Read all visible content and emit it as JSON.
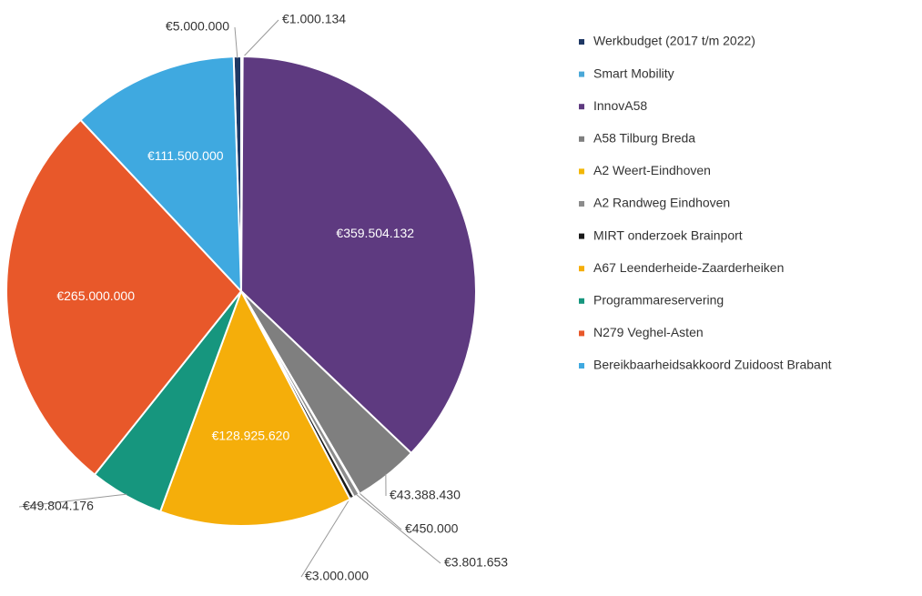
{
  "chart_data": {
    "type": "pie",
    "categories": [
      "Werkbudget (2017 t/m 2022)",
      "Smart Mobility",
      "InnovA58",
      "A58 Tilburg Breda",
      "A2 Weert-Eindhoven",
      "A2 Randweg Eindhoven",
      "MIRT onderzoek Brainport",
      "A67 Leenderheide-Zaarderheiken",
      "Programmareservering",
      "N279 Veghel-Asten",
      "Bereikbaarheidsakkoord Zuidoost Brabant"
    ],
    "values": [
      5000000,
      1000134,
      359504132,
      43388430,
      450000,
      3801653,
      3000000,
      128925620,
      49804176,
      265000000,
      111500000
    ],
    "value_labels": [
      "€5.000.000",
      "€1.000.134",
      "€359.504.132",
      "€43.388.430",
      "€450.000",
      "€3.801.653",
      "€3.000.000",
      "€128.925.620",
      "€49.804.176",
      "€265.000.000",
      "€111.500.000"
    ],
    "colors": [
      "#1f3864",
      "#4aa8d8",
      "#5e3a80",
      "#7f7f7f",
      "#f2b705",
      "#8c8c8c",
      "#1a1a1a",
      "#f5ae0a",
      "#16967e",
      "#e8582a",
      "#3fa9e0"
    ]
  }
}
